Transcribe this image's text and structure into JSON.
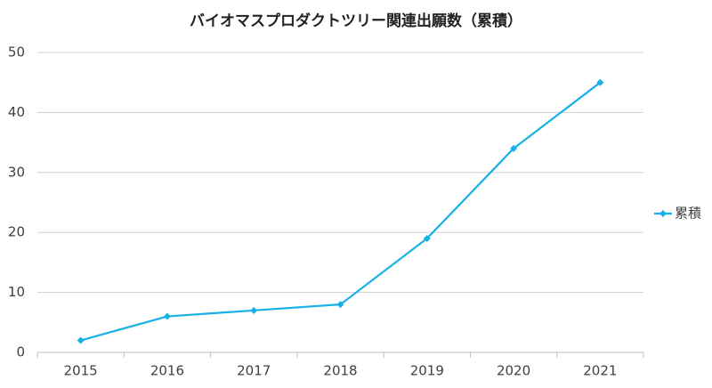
{
  "chart_data": {
    "type": "line",
    "title": "バイオマスプロダクトツリー関連出願数（累積）",
    "categories": [
      "2015",
      "2016",
      "2017",
      "2018",
      "2019",
      "2020",
      "2021"
    ],
    "series": [
      {
        "name": "累積",
        "color": "#19b0e6",
        "values": [
          2,
          6,
          7,
          8,
          19,
          34,
          45
        ]
      }
    ],
    "ylim": [
      0,
      50
    ],
    "yticks": [
      0,
      10,
      20,
      30,
      40,
      50
    ],
    "grid": true,
    "legend": "right"
  }
}
